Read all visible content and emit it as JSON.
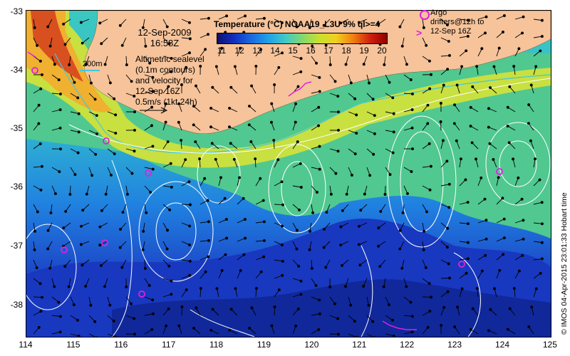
{
  "map": {
    "y_ticks": [
      "-33",
      "-34",
      "-35",
      "-36",
      "-37",
      "-38"
    ],
    "x_ticks": [
      "114",
      "115",
      "116",
      "117",
      "118",
      "119",
      "120",
      "121",
      "122",
      "123",
      "124",
      "125"
    ],
    "date": "12-Sep-2009",
    "time": "16:58Z",
    "contour_depth_label": "200m",
    "note_lines": [
      "Altimetric sealevel",
      "(0.1m contours)",
      "and velocity for",
      "12-Sep 16Z",
      "0.5m/s (1kt 24h)"
    ],
    "legend_title": "Temperature (°C) NOAA19_L3U 9% ql>=4",
    "colorbar_ticks": [
      "11",
      "12",
      "13",
      "14",
      "15",
      "16",
      "17",
      "18",
      "19",
      "20"
    ],
    "argo_label_lines": [
      "Argo",
      "drifters@12h to",
      "12-Sep 16Z"
    ],
    "argo_arrow_symbol": ">",
    "credit": "© IMOS 04-Apr-2015 23:01:33 Hobart time"
  },
  "colors": {
    "land": "#f6c39a",
    "argo": "#e020e0",
    "contour": "#ffffff",
    "isobath": "#40c8e0"
  }
}
